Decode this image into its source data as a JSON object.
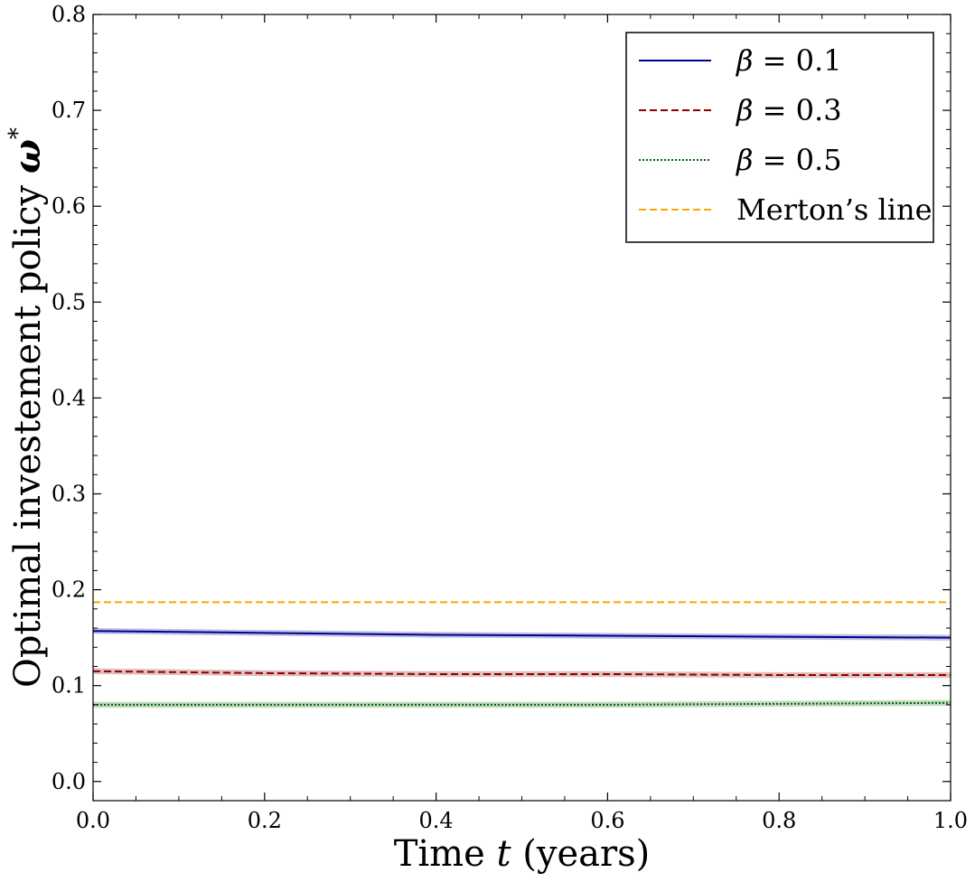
{
  "chart_data": {
    "type": "line",
    "xlabel": "Time t (years)",
    "xlabel_parts": {
      "pre": "Time ",
      "var": "t",
      "post": " (years)"
    },
    "ylabel": "Optimal investement policy ω*",
    "ylabel_parts": {
      "pre": "Optimal investement policy ",
      "var": "ω",
      "sup": "*"
    },
    "xlim": [
      0.0,
      1.0
    ],
    "ylim": [
      -0.02,
      0.8
    ],
    "xticks": [
      "0.0",
      "0.2",
      "0.4",
      "0.6",
      "0.8",
      "1.0"
    ],
    "yticks": [
      "0.0",
      "0.1",
      "0.2",
      "0.3",
      "0.4",
      "0.5",
      "0.6",
      "0.7",
      "0.8"
    ],
    "grid": false,
    "legend_position": "top-right",
    "x": [
      0.0,
      0.2,
      0.4,
      0.6,
      0.8,
      1.0
    ],
    "series": [
      {
        "name": "β = 0.1",
        "greek": "β",
        "value_label": "= 0.1",
        "color": "#00008b",
        "dash": "solid",
        "values": [
          0.157,
          0.155,
          0.153,
          0.152,
          0.151,
          0.15
        ],
        "band": 0.003
      },
      {
        "name": "β = 0.3",
        "greek": "β",
        "value_label": "= 0.3",
        "color": "#8b0000",
        "dash": "dashed",
        "values": [
          0.115,
          0.113,
          0.112,
          0.112,
          0.111,
          0.111
        ],
        "band": 0.003
      },
      {
        "name": "β = 0.5",
        "greek": "β",
        "value_label": "= 0.5",
        "color": "#006400",
        "dash": "dotted",
        "values": [
          0.08,
          0.08,
          0.08,
          0.08,
          0.081,
          0.082
        ],
        "band": 0.003
      },
      {
        "name": "Merton’s line",
        "greek": "",
        "value_label": "Merton’s line",
        "color": "#ffa500",
        "dash": "dashed",
        "values": [
          0.187,
          0.187,
          0.187,
          0.187,
          0.187,
          0.187
        ],
        "band": 0
      }
    ]
  }
}
